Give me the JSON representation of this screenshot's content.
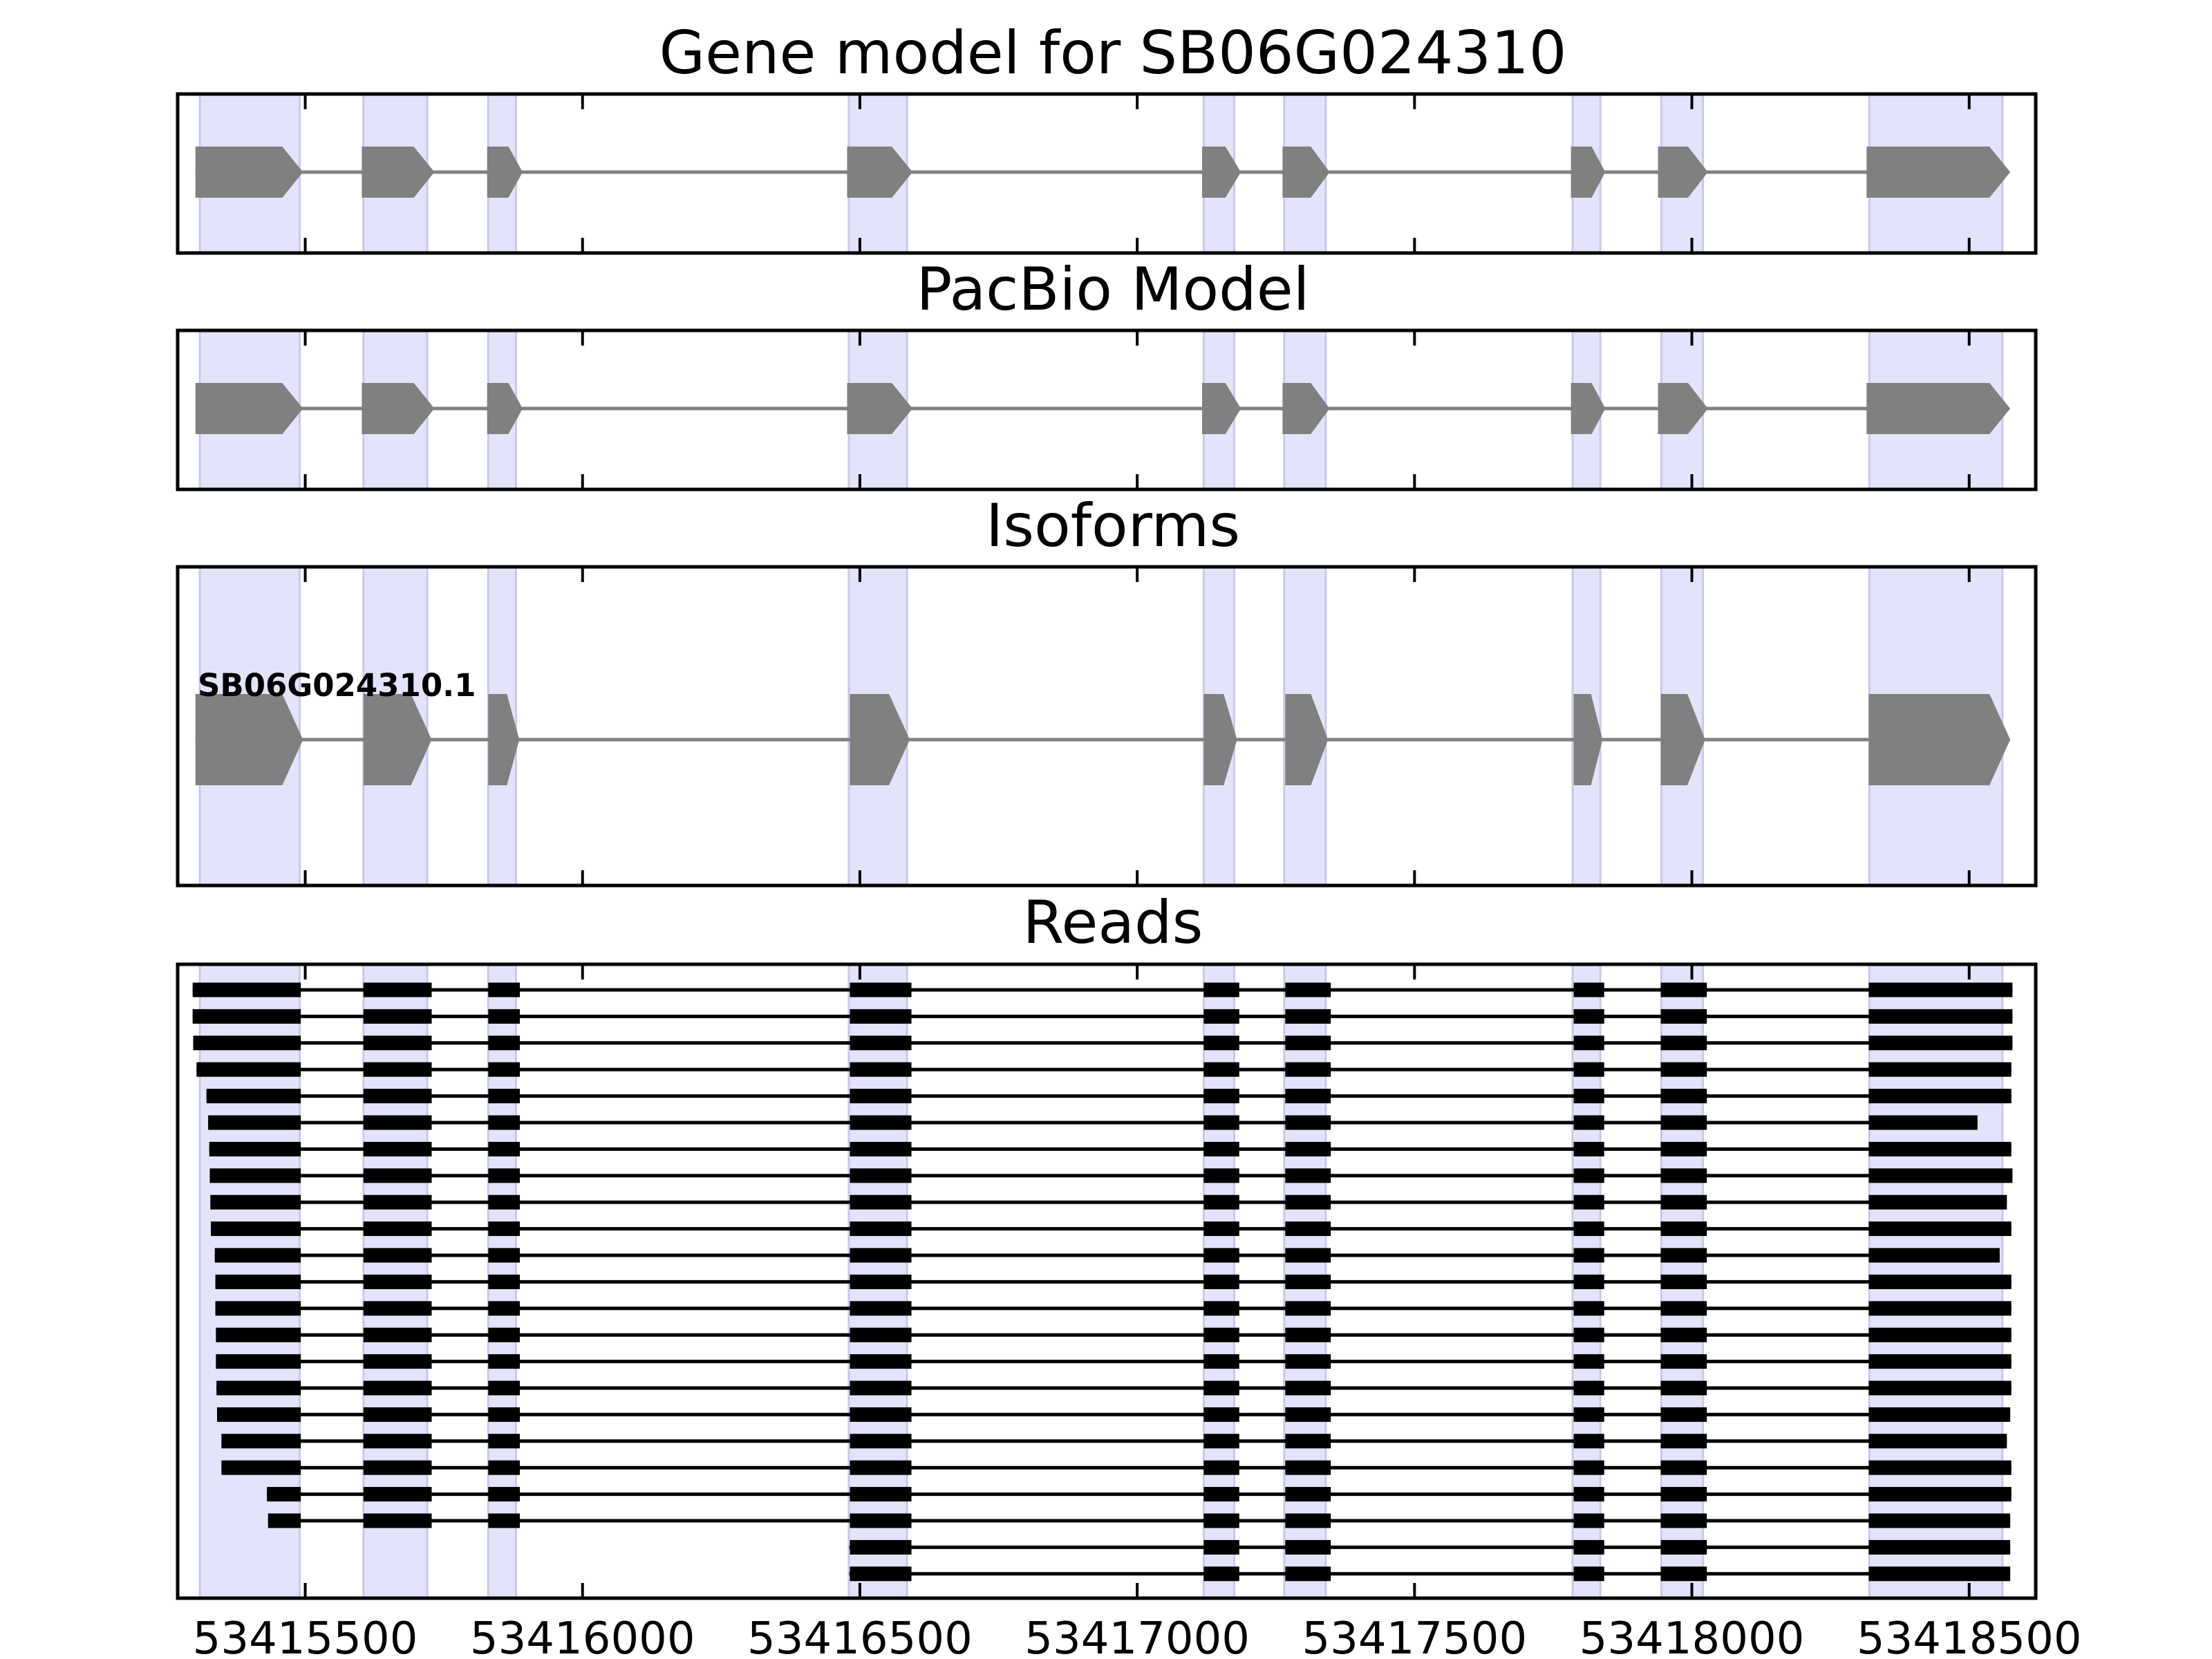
{
  "chart_data": {
    "type": "gene-model-track",
    "x_ticks": [
      53415500,
      53416000,
      53416500,
      53417000,
      53417500,
      53418000,
      53418500
    ],
    "x_tick_labels": [
      "53415500",
      "53416000",
      "53416500",
      "53417000",
      "53417500",
      "53418000",
      "53418500"
    ],
    "xlim": [
      53415270,
      53418620
    ],
    "colors": {
      "exon_shade": "#e3e3fb",
      "exon_shade_edge": "#c8c8ee",
      "model_exon": "#808080",
      "intron": "#808080",
      "read": "#000000",
      "frame": "#000000"
    },
    "shaded_exons": [
      [
        53415310,
        53415490
      ],
      [
        53415605,
        53415720
      ],
      [
        53415830,
        53415880
      ],
      [
        53416480,
        53416585
      ],
      [
        53417120,
        53417175
      ],
      [
        53417265,
        53417340
      ],
      [
        53417785,
        53417835
      ],
      [
        53417945,
        53418020
      ],
      [
        53418320,
        53418560
      ]
    ],
    "panels": [
      {
        "title": "Gene model for SB06G024310",
        "kind": "model",
        "exons": [
          [
            53415302,
            53415496
          ],
          [
            53415602,
            53415733
          ],
          [
            53415828,
            53415892
          ],
          [
            53416477,
            53416595
          ],
          [
            53417117,
            53417187
          ],
          [
            53417262,
            53417347
          ],
          [
            53417782,
            53417844
          ],
          [
            53417939,
            53418029
          ],
          [
            53418315,
            53418574
          ]
        ]
      },
      {
        "title": "PacBio Model",
        "kind": "model",
        "exons": [
          [
            53415302,
            53415496
          ],
          [
            53415602,
            53415733
          ],
          [
            53415828,
            53415892
          ],
          [
            53416477,
            53416595
          ],
          [
            53417117,
            53417187
          ],
          [
            53417262,
            53417347
          ],
          [
            53417782,
            53417844
          ],
          [
            53417939,
            53418029
          ],
          [
            53418315,
            53418574
          ]
        ]
      },
      {
        "title": "Isoforms",
        "kind": "isoform",
        "label": "SB06G024310.1",
        "exons": [
          [
            53415302,
            53415496
          ],
          [
            53415605,
            53415728
          ],
          [
            53415830,
            53415886
          ],
          [
            53416482,
            53416590
          ],
          [
            53417120,
            53417180
          ],
          [
            53417267,
            53417344
          ],
          [
            53417787,
            53417839
          ],
          [
            53417944,
            53418024
          ],
          [
            53418319,
            53418574
          ]
        ]
      },
      {
        "title": "Reads",
        "kind": "reads",
        "core_exons": [
          [
            53415605,
            53415728
          ],
          [
            53415830,
            53415887
          ],
          [
            53416482,
            53416593
          ],
          [
            53417120,
            53417184
          ],
          [
            53417267,
            53417349
          ],
          [
            53417787,
            53417842
          ],
          [
            53417944,
            53418027
          ]
        ],
        "reads": [
          {
            "start": 53415297,
            "end": 53418578
          },
          {
            "start": 53415297,
            "end": 53418578
          },
          {
            "start": 53415298,
            "end": 53418578
          },
          {
            "start": 53415304,
            "end": 53418576
          },
          {
            "start": 53415322,
            "end": 53418576
          },
          {
            "start": 53415325,
            "end": 53418515
          },
          {
            "start": 53415327,
            "end": 53418576
          },
          {
            "start": 53415328,
            "end": 53418578
          },
          {
            "start": 53415329,
            "end": 53418568
          },
          {
            "start": 53415330,
            "end": 53418576
          },
          {
            "start": 53415337,
            "end": 53418555
          },
          {
            "start": 53415338,
            "end": 53418576
          },
          {
            "start": 53415338,
            "end": 53418576
          },
          {
            "start": 53415339,
            "end": 53418576
          },
          {
            "start": 53415339,
            "end": 53418576
          },
          {
            "start": 53415340,
            "end": 53418576
          },
          {
            "start": 53415341,
            "end": 53418574
          },
          {
            "start": 53415349,
            "end": 53418568
          },
          {
            "start": 53415349,
            "end": 53418576
          },
          {
            "start": 53415431,
            "end": 53418576
          },
          {
            "start": 53415433,
            "end": 53418574
          },
          {
            "start": 53416481,
            "end": 53418574
          },
          {
            "start": 53416481,
            "end": 53418574
          }
        ]
      }
    ]
  }
}
